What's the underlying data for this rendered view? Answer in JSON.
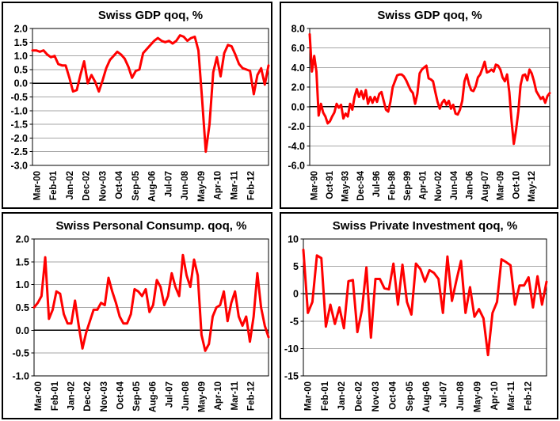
{
  "page": {
    "background": "#ffffff",
    "frame_color": "#000000"
  },
  "chart_data": [
    {
      "id": "swiss-gdp-qoq-recent",
      "type": "line",
      "title": "Swiss GDP qoq, %",
      "line_color": "#ff0000",
      "grid_color": "#a6a6a6",
      "axis_color": "#000000",
      "legend": "none",
      "grid": true,
      "ylim": [
        -3.0,
        2.0
      ],
      "ytick_step": 0.5,
      "ytick_labels": [
        "2.0",
        "1.5",
        "1.0",
        "0.5",
        "0.0",
        "-0.5",
        "-1.0",
        "-1.5",
        "-2.0",
        "-2.5",
        "-3.0"
      ],
      "x_tick_labels": [
        "Mar-00",
        "Feb-01",
        "Jan-02",
        "Dec-02",
        "Nov-03",
        "Oct-04",
        "Sep-05",
        "Aug-06",
        "Jul-07",
        "Jun-08",
        "May-09",
        "Apr-10",
        "Mar-11",
        "Feb-12"
      ],
      "values": [
        1.2,
        1.2,
        1.15,
        1.2,
        1.05,
        0.95,
        1.0,
        0.7,
        0.65,
        0.65,
        0.2,
        -0.3,
        -0.25,
        0.3,
        0.8,
        0.0,
        0.3,
        0.05,
        -0.3,
        0.1,
        0.55,
        0.85,
        1.0,
        1.15,
        1.05,
        0.9,
        0.6,
        0.2,
        0.45,
        0.5,
        1.1,
        1.25,
        1.4,
        1.55,
        1.65,
        1.55,
        1.5,
        1.55,
        1.45,
        1.55,
        1.75,
        1.7,
        1.55,
        1.65,
        1.7,
        1.2,
        -0.6,
        -2.5,
        -1.5,
        0.4,
        0.95,
        0.25,
        1.1,
        1.4,
        1.35,
        1.05,
        0.7,
        0.55,
        0.5,
        0.45,
        -0.4,
        0.3,
        0.55,
        -0.05,
        0.65
      ]
    },
    {
      "id": "swiss-gdp-qoq-long",
      "type": "line",
      "title": "Swiss GDP qoq, %",
      "line_color": "#ff0000",
      "grid_color": "#a6a6a6",
      "axis_color": "#000000",
      "legend": "none",
      "grid": true,
      "ylim": [
        -6.0,
        8.0
      ],
      "ytick_step": 2.0,
      "ytick_labels": [
        "8.0",
        "6.0",
        "4.0",
        "2.0",
        "0.0",
        "-2.0",
        "-4.0",
        "-6.0"
      ],
      "x_tick_labels": [
        "Mar-90",
        "Oct-91",
        "May-93",
        "Dec-94",
        "Jul-96",
        "Feb-98",
        "Sep-99",
        "Apr-01",
        "Nov-02",
        "Jun-04",
        "Jan-06",
        "Aug-07",
        "Mar-09",
        "Oct-10",
        "May-12"
      ],
      "values": [
        7.4,
        3.6,
        5.2,
        3.6,
        -0.9,
        0.3,
        -0.6,
        -1.0,
        -1.7,
        -1.5,
        -1.0,
        -0.6,
        0.3,
        -0.1,
        0.2,
        -1.2,
        -0.7,
        -1.0,
        0.3,
        -0.3,
        1.0,
        1.8,
        1.0,
        1.6,
        0.8,
        1.7,
        0.3,
        1.0,
        0.4,
        1.0,
        0.5,
        1.3,
        1.5,
        0.6,
        -0.3,
        -0.5,
        0.5,
        2.0,
        2.6,
        3.2,
        3.3,
        3.3,
        3.1,
        2.7,
        2.2,
        1.7,
        1.4,
        0.3,
        1.3,
        3.4,
        3.8,
        4.0,
        4.2,
        2.9,
        2.8,
        2.6,
        1.5,
        0.5,
        -0.2,
        0.4,
        0.7,
        0.2,
        0.6,
        -0.2,
        0.2,
        -0.7,
        -0.8,
        -0.3,
        0.6,
        2.6,
        3.3,
        2.3,
        1.7,
        1.6,
        2.1,
        3.0,
        3.3,
        3.9,
        4.6,
        3.5,
        3.6,
        3.8,
        3.6,
        4.3,
        4.2,
        3.8,
        3.0,
        2.6,
        3.3,
        1.5,
        -1.5,
        -3.8,
        -2.4,
        -0.5,
        2.2,
        3.2,
        3.3,
        2.7,
        3.8,
        3.4,
        2.6,
        1.6,
        1.2,
        0.8,
        1.0,
        0.4,
        1.1,
        1.4
      ]
    },
    {
      "id": "swiss-personal-consumption",
      "type": "line",
      "title": "Swiss Personal Consump. qoq, %",
      "line_color": "#ff0000",
      "grid_color": "#a6a6a6",
      "axis_color": "#000000",
      "legend": "none",
      "grid": true,
      "ylim": [
        -1.0,
        2.0
      ],
      "ytick_step": 0.5,
      "ytick_labels": [
        "2.0",
        "1.5",
        "1.0",
        "0.5",
        "0.0",
        "-0.5",
        "-1.0"
      ],
      "x_tick_labels": [
        "Mar-00",
        "Feb-01",
        "Jan-02",
        "Dec-02",
        "Nov-03",
        "Oct-04",
        "Sep-05",
        "Aug-06",
        "Jul-07",
        "Jun-08",
        "May-09",
        "Apr-10",
        "Mar-11",
        "Feb-12"
      ],
      "values": [
        0.5,
        0.6,
        0.75,
        1.6,
        0.25,
        0.45,
        0.85,
        0.8,
        0.35,
        0.15,
        0.15,
        0.65,
        0.1,
        -0.4,
        -0.05,
        0.2,
        0.45,
        0.45,
        0.6,
        0.55,
        1.15,
        0.85,
        0.6,
        0.3,
        0.15,
        0.15,
        0.35,
        0.9,
        0.85,
        0.75,
        0.9,
        0.4,
        0.55,
        1.1,
        0.95,
        0.55,
        0.75,
        1.25,
        0.95,
        0.75,
        1.65,
        1.2,
        0.95,
        1.55,
        1.2,
        -0.1,
        -0.45,
        -0.3,
        0.3,
        0.5,
        0.55,
        0.85,
        0.2,
        0.6,
        0.85,
        0.3,
        0.1,
        0.3,
        -0.25,
        0.3,
        1.25,
        0.5,
        0.1,
        -0.15
      ]
    },
    {
      "id": "swiss-private-investment",
      "type": "line",
      "title": "Swiss Private Investment qoq, %",
      "line_color": "#ff0000",
      "grid_color": "#a6a6a6",
      "axis_color": "#000000",
      "legend": "none",
      "grid": true,
      "ylim": [
        -15,
        10
      ],
      "ytick_step": 5,
      "ytick_labels": [
        "10",
        "5",
        "0",
        "-5",
        "-10",
        "-15"
      ],
      "x_tick_labels": [
        "Mar-00",
        "Feb-01",
        "Jan-02",
        "Dec-02",
        "Nov-03",
        "Oct-04",
        "Sep-05",
        "Aug-06",
        "Jul-07",
        "Jun-08",
        "May-09",
        "Apr-10",
        "Mar-11",
        "Feb-12"
      ],
      "values": [
        8.0,
        -3.5,
        -1.5,
        7.0,
        6.5,
        -6.0,
        -2.0,
        -5.5,
        -2.5,
        -6.3,
        2.3,
        2.5,
        -7.0,
        -3.0,
        4.8,
        -8.0,
        2.7,
        2.7,
        1.0,
        0.8,
        5.5,
        -2.0,
        5.3,
        -1.5,
        -3.8,
        5.5,
        4.5,
        2.2,
        4.3,
        3.8,
        2.7,
        -3.5,
        6.8,
        -1.3,
        2.5,
        6.0,
        -3.5,
        1.2,
        -4.2,
        -2.8,
        -4.5,
        -11.2,
        -3.5,
        -1.5,
        6.3,
        5.8,
        5.2,
        -2.0,
        1.5,
        1.5,
        3.0,
        -2.5,
        3.2,
        -2.0,
        2.2
      ]
    }
  ]
}
